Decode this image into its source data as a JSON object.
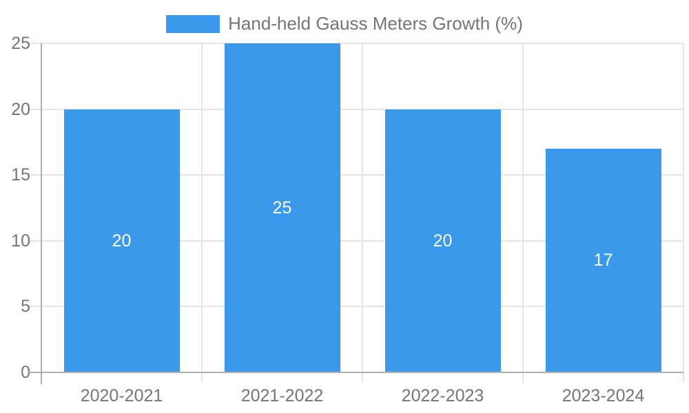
{
  "legend": {
    "label": "Hand-held Gauss Meters Growth (%)"
  },
  "colors": {
    "bar": "#3b99ec",
    "grid": "#e5e5e5",
    "axis": "#b0b0b0",
    "tick_label": "#757575",
    "legend_label": "#757575",
    "bar_value_label": "#ffffff",
    "background": "#ffffff"
  },
  "chart_data": {
    "type": "bar",
    "title": "Hand-held Gauss Meters Growth (%)",
    "categories": [
      "2020-2021",
      "2021-2022",
      "2022-2023",
      "2023-2024"
    ],
    "values": [
      20,
      25,
      20,
      17
    ],
    "bar_labels": [
      "20",
      "25",
      "20",
      "17"
    ],
    "xlabel": "",
    "ylabel": "",
    "ylim": [
      0,
      25
    ],
    "yticks": [
      0,
      5,
      10,
      15,
      20,
      25
    ],
    "grid": true,
    "legend_position": "top",
    "bar_label_position": "center"
  }
}
